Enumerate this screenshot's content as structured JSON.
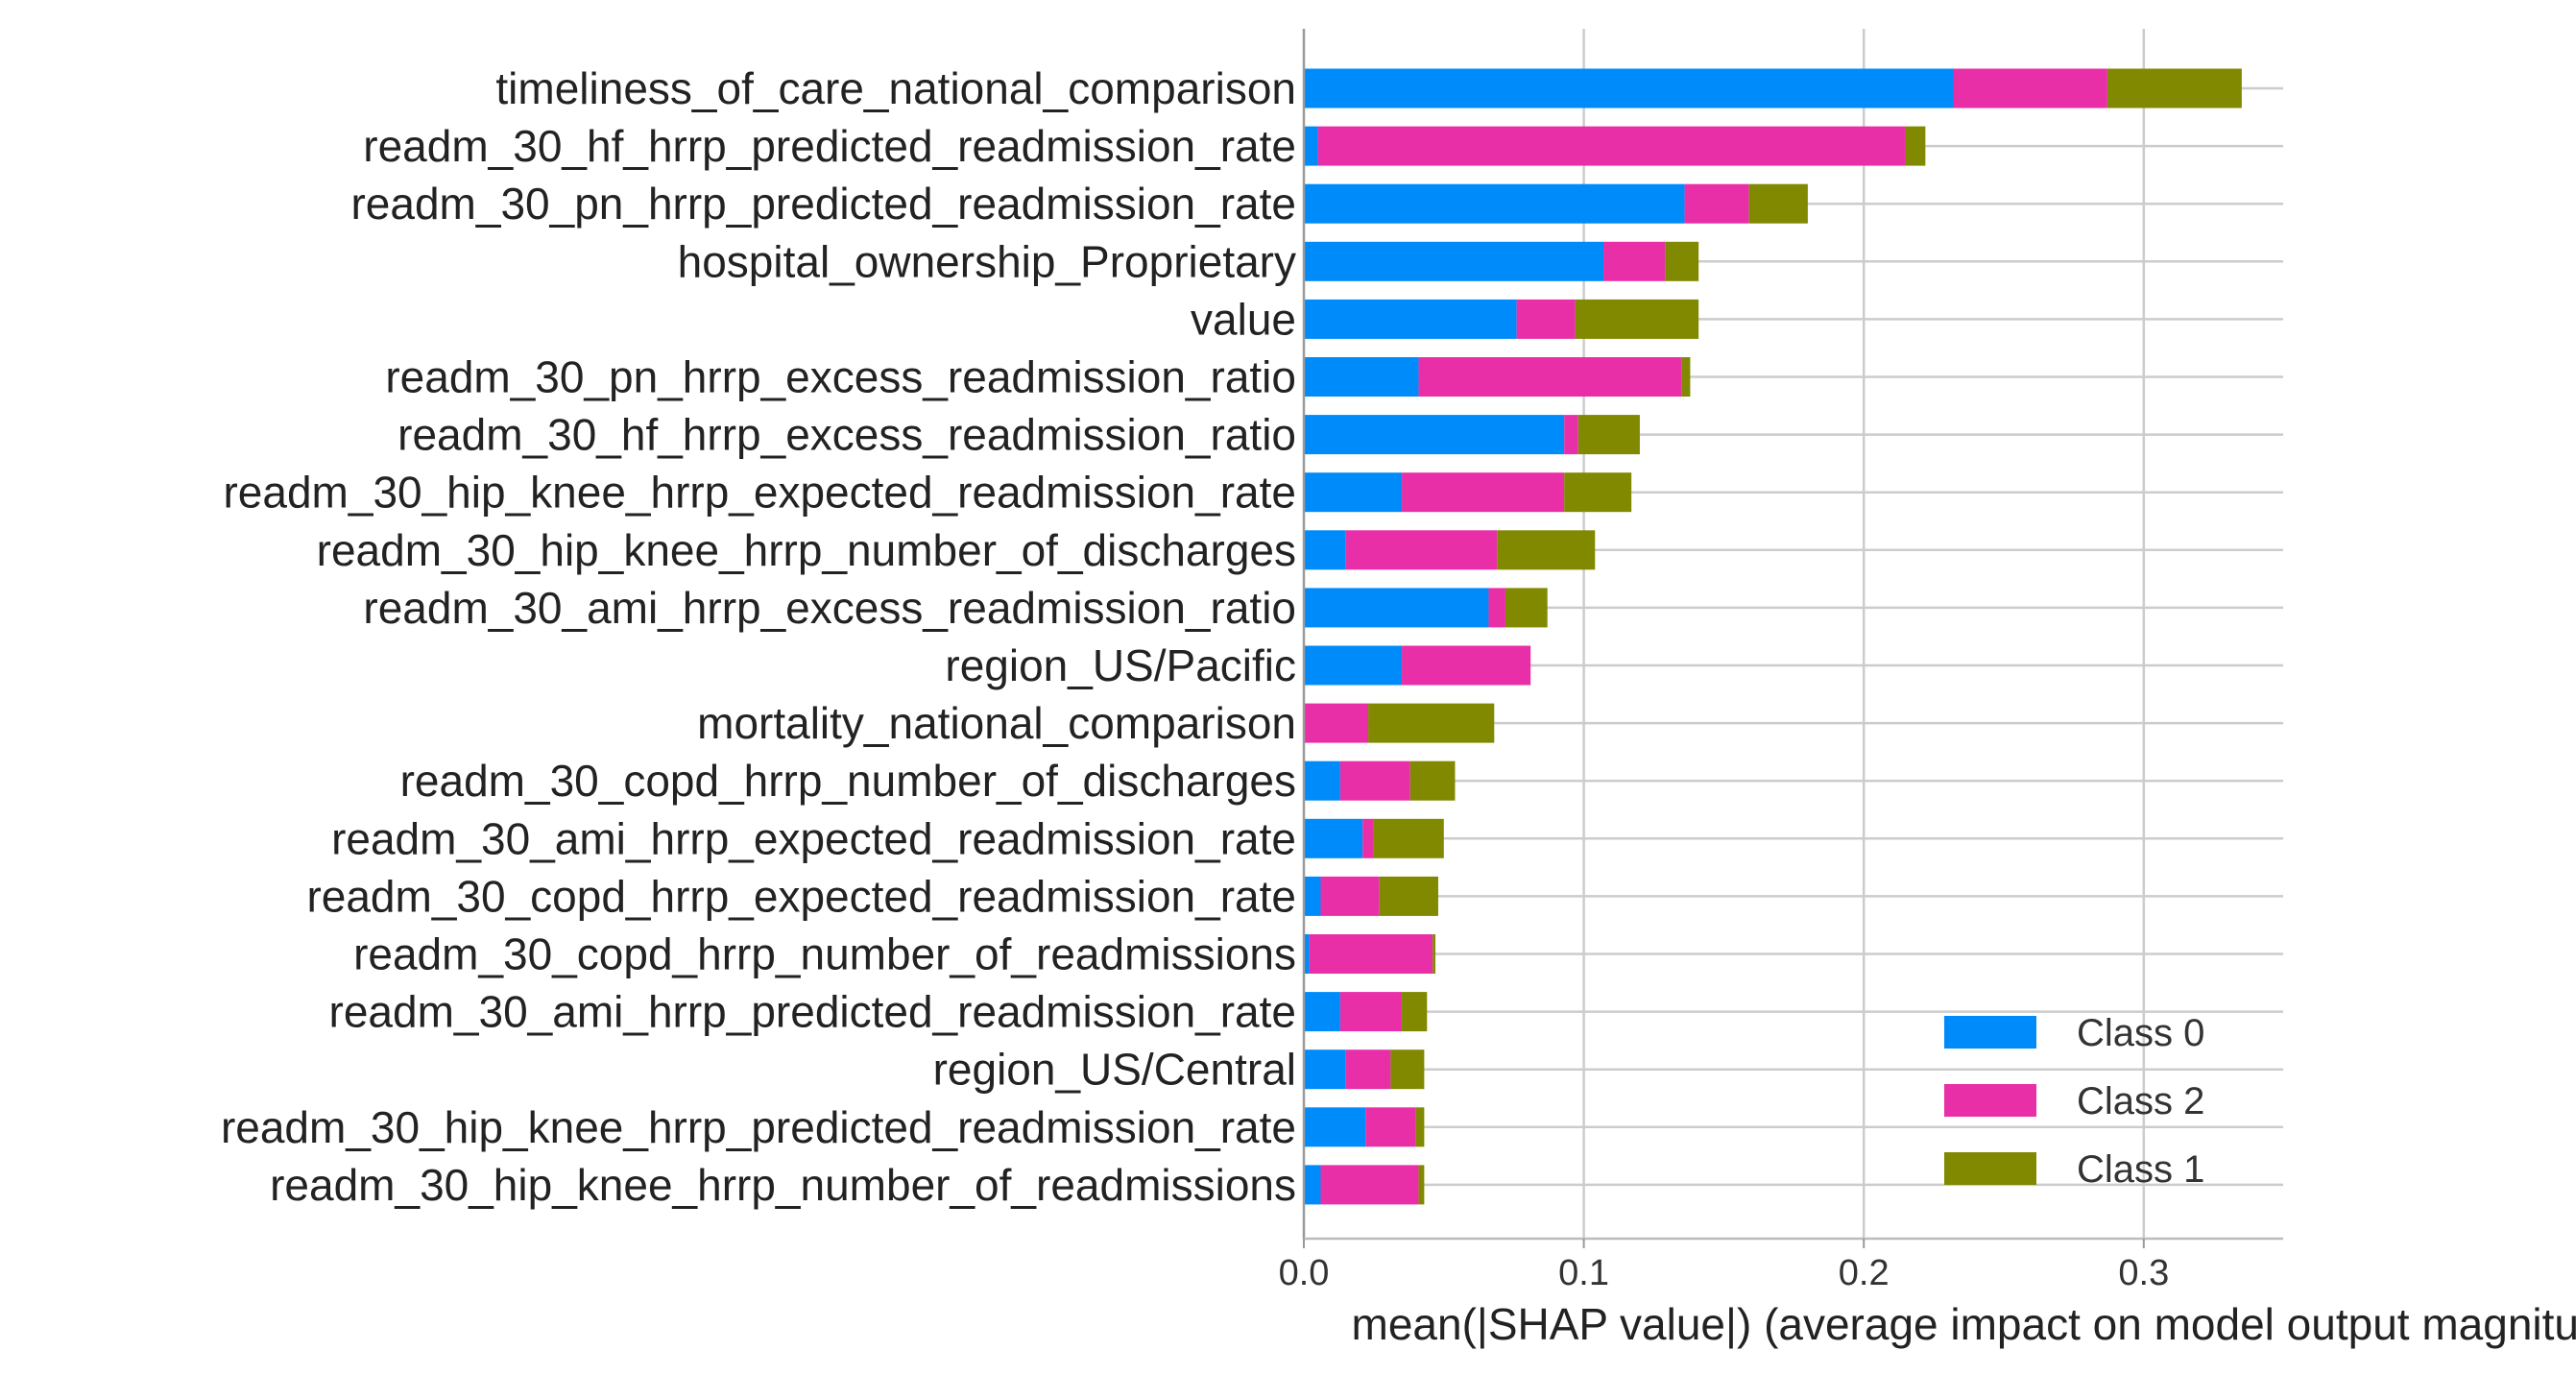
{
  "chart_data": {
    "type": "bar",
    "orientation": "horizontal",
    "stacked": true,
    "xlabel": "mean(|SHAP value|) (average impact on model output magnitude)",
    "ylabel": "",
    "xlim": [
      0,
      0.35
    ],
    "xticks": [
      0.0,
      0.1,
      0.2,
      0.3
    ],
    "xtick_labels": [
      "0.0",
      "0.1",
      "0.2",
      "0.3"
    ],
    "grid": true,
    "legend_position": "bottom-right",
    "categories": [
      "timeliness_of_care_national_comparison",
      "readm_30_hf_hrrp_predicted_readmission_rate",
      "readm_30_pn_hrrp_predicted_readmission_rate",
      "hospital_ownership_Proprietary",
      "value",
      "readm_30_pn_hrrp_excess_readmission_ratio",
      "readm_30_hf_hrrp_excess_readmission_ratio",
      "readm_30_hip_knee_hrrp_expected_readmission_rate",
      "readm_30_hip_knee_hrrp_number_of_discharges",
      "readm_30_ami_hrrp_excess_readmission_ratio",
      "region_US/Pacific",
      "mortality_national_comparison",
      "readm_30_copd_hrrp_number_of_discharges",
      "readm_30_ami_hrrp_expected_readmission_rate",
      "readm_30_copd_hrrp_expected_readmission_rate",
      "readm_30_copd_hrrp_number_of_readmissions",
      "readm_30_ami_hrrp_predicted_readmission_rate",
      "region_US/Central",
      "readm_30_hip_knee_hrrp_predicted_readmission_rate",
      "readm_30_hip_knee_hrrp_number_of_readmissions"
    ],
    "series": [
      {
        "name": "Class 0",
        "color": "#008bfb",
        "values": [
          0.232,
          0.005,
          0.136,
          0.107,
          0.076,
          0.041,
          0.093,
          0.035,
          0.015,
          0.066,
          0.035,
          0.0,
          0.013,
          0.021,
          0.006,
          0.002,
          0.013,
          0.015,
          0.022,
          0.006
        ]
      },
      {
        "name": "Class 2",
        "color": "#e82fa8",
        "values": [
          0.055,
          0.21,
          0.023,
          0.022,
          0.021,
          0.094,
          0.005,
          0.058,
          0.054,
          0.006,
          0.046,
          0.023,
          0.025,
          0.004,
          0.021,
          0.044,
          0.022,
          0.016,
          0.018,
          0.035
        ]
      },
      {
        "name": "Class 1",
        "color": "#808900",
        "values": [
          0.048,
          0.007,
          0.021,
          0.012,
          0.044,
          0.003,
          0.022,
          0.024,
          0.035,
          0.015,
          0.0,
          0.045,
          0.016,
          0.025,
          0.021,
          0.001,
          0.009,
          0.012,
          0.003,
          0.002
        ]
      }
    ],
    "legend_order": [
      "Class 0",
      "Class 2",
      "Class 1"
    ]
  }
}
